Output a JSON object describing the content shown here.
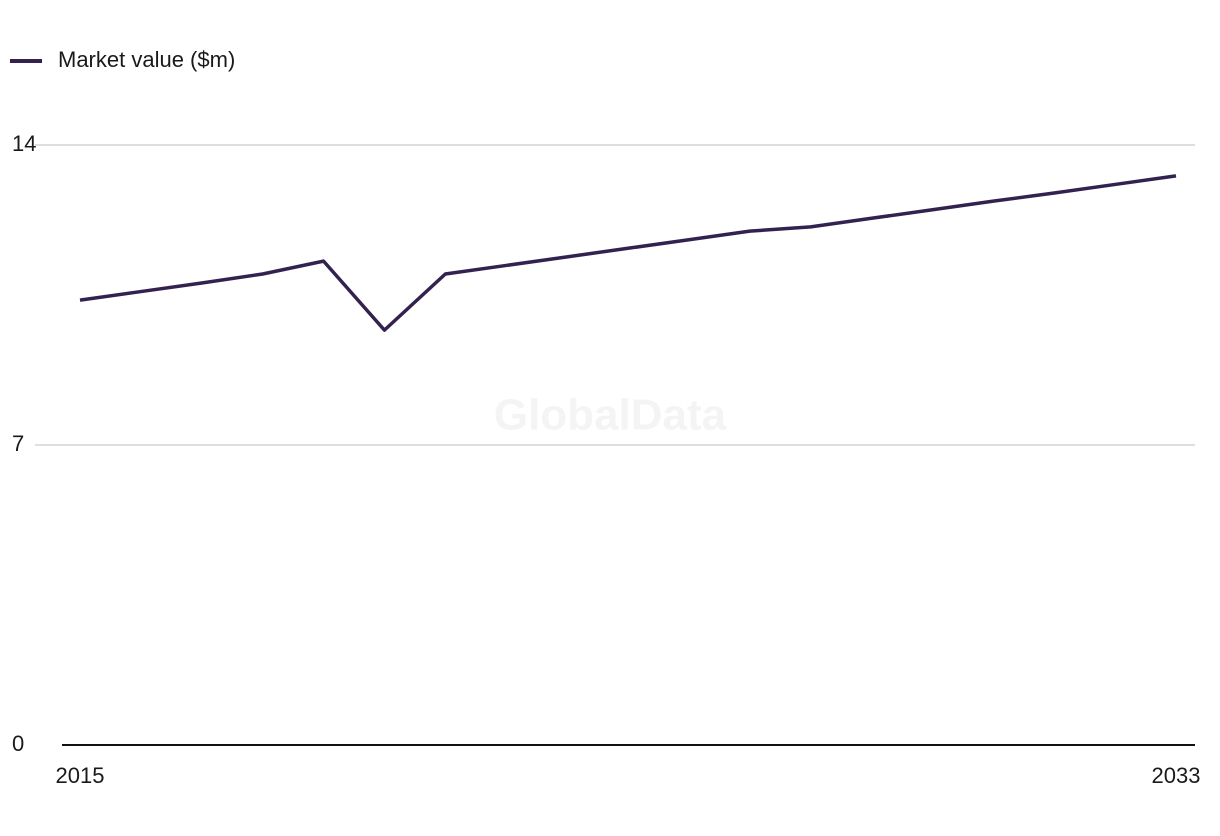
{
  "chart_data": {
    "type": "line",
    "watermark": "GlobalData",
    "x": [
      2015,
      2016,
      2017,
      2018,
      2019,
      2020,
      2021,
      2022,
      2023,
      2024,
      2025,
      2026,
      2027,
      2028,
      2029,
      2030,
      2031,
      2032,
      2033
    ],
    "series": [
      {
        "name": "Market value ($m)",
        "color": "#33224f",
        "values": [
          10.38,
          10.58,
          10.78,
          10.99,
          11.29,
          9.68,
          10.99,
          11.19,
          11.39,
          11.59,
          11.79,
          11.99,
          12.09,
          12.29,
          12.49,
          12.69,
          12.88,
          13.08,
          13.28
        ]
      }
    ],
    "xlim": [
      2015,
      2033
    ],
    "xticks": [
      2015,
      2033
    ],
    "ylim": [
      0,
      14
    ],
    "yticks": [
      0,
      7,
      14
    ],
    "grid": true,
    "legend": "top-left"
  }
}
